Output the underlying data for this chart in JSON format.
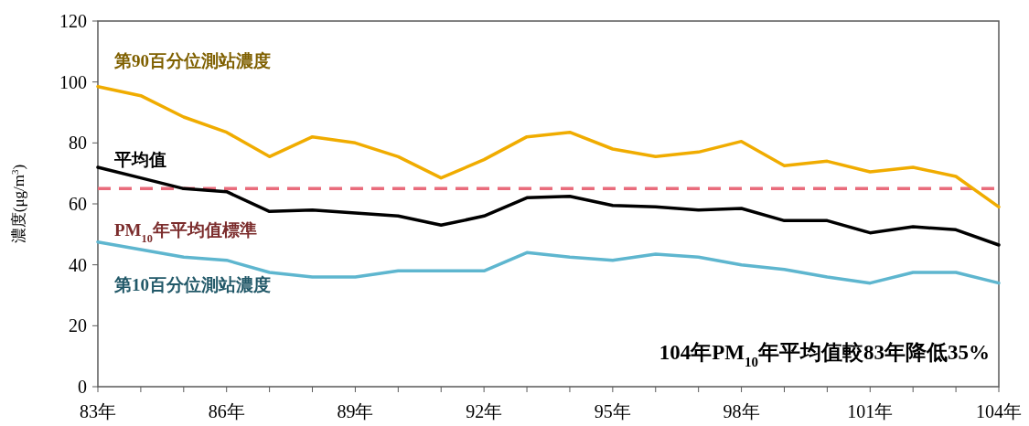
{
  "chart_data": {
    "type": "line",
    "ylabel": "濃度(μg/m$^{3}$)",
    "x": [
      83,
      84,
      85,
      86,
      87,
      88,
      89,
      90,
      91,
      92,
      93,
      94,
      95,
      96,
      97,
      98,
      99,
      100,
      101,
      102,
      103,
      104
    ],
    "xlim": [
      83,
      104
    ],
    "xticks": [
      {
        "value": 83,
        "label": "83年"
      },
      {
        "value": 84,
        "label": null
      },
      {
        "value": 85,
        "label": null
      },
      {
        "value": 86,
        "label": "86年"
      },
      {
        "value": 87,
        "label": null
      },
      {
        "value": 88,
        "label": null
      },
      {
        "value": 89,
        "label": "89年"
      },
      {
        "value": 90,
        "label": null
      },
      {
        "value": 91,
        "label": null
      },
      {
        "value": 92,
        "label": "92年"
      },
      {
        "value": 93,
        "label": null
      },
      {
        "value": 94,
        "label": null
      },
      {
        "value": 95,
        "label": "95年"
      },
      {
        "value": 96,
        "label": null
      },
      {
        "value": 97,
        "label": null
      },
      {
        "value": 98,
        "label": "98年"
      },
      {
        "value": 99,
        "label": null
      },
      {
        "value": 100,
        "label": null
      },
      {
        "value": 101,
        "label": "101年"
      },
      {
        "value": 102,
        "label": null
      },
      {
        "value": 103,
        "label": null
      },
      {
        "value": 104,
        "label": "104年"
      }
    ],
    "ylim": [
      0,
      120
    ],
    "yticks": [
      0,
      20,
      40,
      60,
      80,
      100,
      120
    ],
    "series": [
      {
        "name": "第90百分位測站濃度",
        "color": "#f0ac00",
        "values": [
          98.5,
          95.5,
          88.5,
          83.5,
          75.5,
          82,
          80,
          75.5,
          68.5,
          74.5,
          82,
          83.5,
          78,
          75.5,
          77,
          80.5,
          72.5,
          74,
          70.5,
          72,
          69,
          59
        ]
      },
      {
        "name": "平均值",
        "color": "#000000",
        "values": [
          72,
          68.5,
          65,
          64,
          57.5,
          58,
          57,
          56,
          53,
          56,
          62,
          62.5,
          59.5,
          59,
          58,
          58.5,
          54.5,
          54.5,
          50.5,
          52.5,
          51.5,
          46.5
        ]
      },
      {
        "name": "第10百分位測站濃度",
        "color": "#5eb6cf",
        "values": [
          47.5,
          45,
          42.5,
          41.5,
          37.5,
          36,
          36,
          38,
          38,
          38,
          44,
          42.5,
          41.5,
          43.5,
          42.5,
          40,
          38.5,
          36,
          34,
          37.5,
          37.5,
          34
        ]
      }
    ],
    "ref_lines": [
      {
        "axis": "y",
        "value": 65,
        "label": "PM$_{10}$年平均值標準",
        "color": "#e96b7b",
        "line_style": "dashed"
      }
    ],
    "annotations": [
      "104年PM$_{10}$年平均值較83年降低35%"
    ],
    "grid": false,
    "legend": false,
    "marker": "none",
    "line_style": "solid"
  }
}
